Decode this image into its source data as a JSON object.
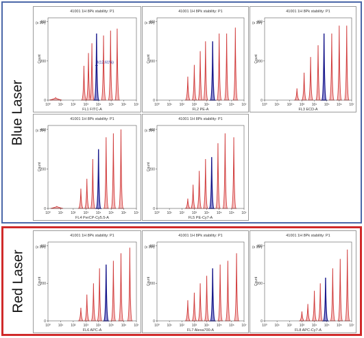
{
  "groups": {
    "blue": {
      "label": "Blue Laser"
    },
    "red": {
      "label": "Red Laser"
    }
  },
  "colors": {
    "blue_frame": "#4a66a8",
    "red_frame": "#d02a2a",
    "peak": "#d03a3a",
    "peak_fill": "#f4b9b9",
    "gated_peak": "#1a1a8c"
  },
  "chart_data": [
    {
      "type": "area",
      "group": "blue",
      "title": "41001 1H 8Pk stability: P1",
      "xlabel": "FL1 FITC-A",
      "ylabel": "Count",
      "ymult": "(x 10¹)",
      "xscale": "log",
      "xlim": [
        1,
        10000000
      ],
      "ylim": [
        0,
        420
      ],
      "xticks": [
        "10⁰",
        "10¹",
        "10²",
        "10³",
        "10⁴",
        "10⁵",
        "10⁶",
        "10⁷"
      ],
      "yticks": [
        "0",
        "200",
        "400"
      ],
      "annotation": "B(12.61%)",
      "peaks": [
        {
          "x": 4,
          "y": 12
        },
        {
          "x": 700,
          "y": 175
        },
        {
          "x": 1600,
          "y": 240
        },
        {
          "x": 3000,
          "y": 290
        },
        {
          "x": 7000,
          "y": 340,
          "gated": true
        },
        {
          "x": 25000,
          "y": 330
        },
        {
          "x": 90000,
          "y": 355
        },
        {
          "x": 300000,
          "y": 365
        }
      ]
    },
    {
      "type": "area",
      "group": "blue",
      "title": "41001 1H 8Pk stability: P1",
      "xlabel": "FL2 PE-A",
      "ylabel": "Count",
      "ymult": "(x 10¹)",
      "xscale": "log",
      "xlim": [
        1,
        10000000
      ],
      "ylim": [
        0,
        420
      ],
      "xticks": [
        "10⁰",
        "10¹",
        "10²",
        "10³",
        "10⁴",
        "10⁵",
        "10⁶",
        "10⁷"
      ],
      "yticks": [
        "0",
        "200",
        "400"
      ],
      "peaks": [
        {
          "x": 300,
          "y": 120
        },
        {
          "x": 1000,
          "y": 180
        },
        {
          "x": 3000,
          "y": 250
        },
        {
          "x": 8000,
          "y": 300
        },
        {
          "x": 30000,
          "y": 300,
          "gated": true
        },
        {
          "x": 100000,
          "y": 340
        },
        {
          "x": 400000,
          "y": 340
        },
        {
          "x": 2000000,
          "y": 370
        }
      ]
    },
    {
      "type": "area",
      "group": "blue",
      "title": "41001 1H 8Pk stability: P1",
      "xlabel": "FL3 ECD-A",
      "ylabel": "Count",
      "ymult": "(x 10¹)",
      "xscale": "log",
      "xlim": [
        1,
        10000000
      ],
      "ylim": [
        0,
        420
      ],
      "xticks": [
        "10⁰",
        "10¹",
        "10²",
        "10³",
        "10⁴",
        "10⁵",
        "10⁶",
        "10⁷"
      ],
      "yticks": [
        "0",
        "200",
        "400"
      ],
      "peaks": [
        {
          "x": 400,
          "y": 60
        },
        {
          "x": 1500,
          "y": 140
        },
        {
          "x": 5000,
          "y": 220
        },
        {
          "x": 20000,
          "y": 280
        },
        {
          "x": 60000,
          "y": 340,
          "gated": true
        },
        {
          "x": 250000,
          "y": 340
        },
        {
          "x": 1000000,
          "y": 380
        },
        {
          "x": 4000000,
          "y": 380
        }
      ]
    },
    {
      "type": "area",
      "group": "blue",
      "title": "41001 1H 8Pk stability: P1",
      "xlabel": "FL4 PerCP-Cy5.5-A",
      "ylabel": "Count",
      "ymult": "(x 10¹)",
      "xscale": "log",
      "xlim": [
        1,
        10000000
      ],
      "ylim": [
        0,
        420
      ],
      "xticks": [
        "10⁰",
        "10¹",
        "10²",
        "10³",
        "10⁴",
        "10⁵",
        "10⁶",
        "10⁷"
      ],
      "yticks": [
        "0",
        "200",
        "400"
      ],
      "peaks": [
        {
          "x": 5,
          "y": 10
        },
        {
          "x": 400,
          "y": 100
        },
        {
          "x": 1200,
          "y": 150
        },
        {
          "x": 3500,
          "y": 250
        },
        {
          "x": 10000,
          "y": 300,
          "gated": true
        },
        {
          "x": 40000,
          "y": 360
        },
        {
          "x": 150000,
          "y": 380
        },
        {
          "x": 600000,
          "y": 400
        }
      ]
    },
    {
      "type": "area",
      "group": "blue",
      "title": "41001 1H 8Pk stability: P1",
      "xlabel": "FL5 PE-Cy7-A",
      "ylabel": "Count",
      "ymult": "(x 10¹)",
      "xscale": "log",
      "xlim": [
        1,
        10000000
      ],
      "ylim": [
        0,
        420
      ],
      "xticks": [
        "10⁰",
        "10¹",
        "10²",
        "10³",
        "10⁴",
        "10⁵",
        "10⁶",
        "10⁷"
      ],
      "yticks": [
        "0",
        "200",
        "400"
      ],
      "peaks": [
        {
          "x": 300,
          "y": 50
        },
        {
          "x": 800,
          "y": 120
        },
        {
          "x": 2500,
          "y": 190
        },
        {
          "x": 8000,
          "y": 250
        },
        {
          "x": 25000,
          "y": 260,
          "gated": true
        },
        {
          "x": 80000,
          "y": 330
        },
        {
          "x": 300000,
          "y": 380
        },
        {
          "x": 1500000,
          "y": 360
        }
      ]
    },
    {
      "type": "area",
      "group": "red",
      "title": "41001 1H 8Pk stability: P1",
      "xlabel": "FL6 APC-A",
      "ylabel": "Count",
      "ymult": "(x 10¹)",
      "xscale": "log",
      "xlim": [
        1,
        10000000
      ],
      "ylim": [
        0,
        420
      ],
      "xticks": [
        "10⁰",
        "10¹",
        "10²",
        "10³",
        "10⁴",
        "10⁵",
        "10⁶",
        "10⁷"
      ],
      "yticks": [
        "0",
        "200",
        "400"
      ],
      "peaks": [
        {
          "x": 400,
          "y": 70
        },
        {
          "x": 1200,
          "y": 140
        },
        {
          "x": 4000,
          "y": 200
        },
        {
          "x": 12000,
          "y": 280
        },
        {
          "x": 40000,
          "y": 300,
          "gated": true
        },
        {
          "x": 150000,
          "y": 320
        },
        {
          "x": 600000,
          "y": 360
        },
        {
          "x": 3000000,
          "y": 390
        }
      ]
    },
    {
      "type": "area",
      "group": "red",
      "title": "41001 1H 8Pk stability: P1",
      "xlabel": "FL7 Alexa700-A",
      "ylabel": "Count",
      "ymult": "(x 10¹)",
      "xscale": "log",
      "xlim": [
        1,
        10000000
      ],
      "ylim": [
        0,
        420
      ],
      "xticks": [
        "10⁰",
        "10¹",
        "10²",
        "10³",
        "10⁴",
        "10⁵",
        "10⁶",
        "10⁷"
      ],
      "yticks": [
        "0",
        "200",
        "400"
      ],
      "peaks": [
        {
          "x": 300,
          "y": 110
        },
        {
          "x": 1000,
          "y": 150
        },
        {
          "x": 3000,
          "y": 200
        },
        {
          "x": 10000,
          "y": 240
        },
        {
          "x": 30000,
          "y": 280,
          "gated": true
        },
        {
          "x": 120000,
          "y": 300
        },
        {
          "x": 500000,
          "y": 320
        },
        {
          "x": 2500000,
          "y": 360
        }
      ]
    },
    {
      "type": "area",
      "group": "red",
      "title": "41001 1H 8Pk stability: P1",
      "xlabel": "FL8 APC-Cy7-A",
      "ylabel": "Count",
      "ymult": "(x 10¹)",
      "xscale": "log",
      "xlim": [
        1,
        10000000
      ],
      "ylim": [
        0,
        420
      ],
      "xticks": [
        "10⁰",
        "10¹",
        "10²",
        "10³",
        "10⁴",
        "10⁵",
        "10⁶",
        "10⁷"
      ],
      "yticks": [
        "0",
        "200",
        "400"
      ],
      "peaks": [
        {
          "x": 1000,
          "y": 50
        },
        {
          "x": 3000,
          "y": 90
        },
        {
          "x": 10000,
          "y": 160
        },
        {
          "x": 30000,
          "y": 200
        },
        {
          "x": 80000,
          "y": 230,
          "gated": true
        },
        {
          "x": 300000,
          "y": 280
        },
        {
          "x": 1200000,
          "y": 330
        },
        {
          "x": 4500000,
          "y": 380
        }
      ]
    }
  ]
}
